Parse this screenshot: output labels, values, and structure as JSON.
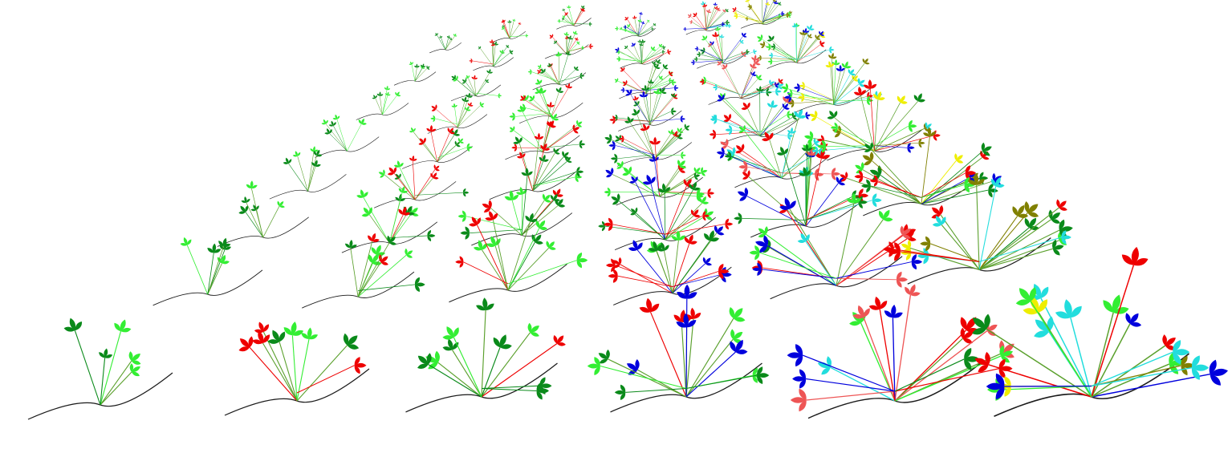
{
  "scene": {
    "background": "#ffffff",
    "subject": "perspective-rows-of-3d-plant-models",
    "row_count": 6,
    "plants_per_row_visible": [
      8,
      9,
      9,
      9,
      8,
      7
    ],
    "stem_color": "#5aa02c",
    "root_color": "#1a1a1a",
    "row_palettes": [
      [
        "#33ee33",
        "#0a8a1a"
      ],
      [
        "#33ee33",
        "#0a8a1a",
        "#ee0000"
      ],
      [
        "#33ee33",
        "#0a8a1a",
        "#ee0000"
      ],
      [
        "#33ee33",
        "#0a8a1a",
        "#ee0000",
        "#0000dd"
      ],
      [
        "#33ee33",
        "#0a8a1a",
        "#ee0000",
        "#0000dd",
        "#22dddd",
        "#ee5555"
      ],
      [
        "#33ee33",
        "#0a8a1a",
        "#ee0000",
        "#0000dd",
        "#22dddd",
        "#eeee00",
        "#808000"
      ]
    ]
  }
}
